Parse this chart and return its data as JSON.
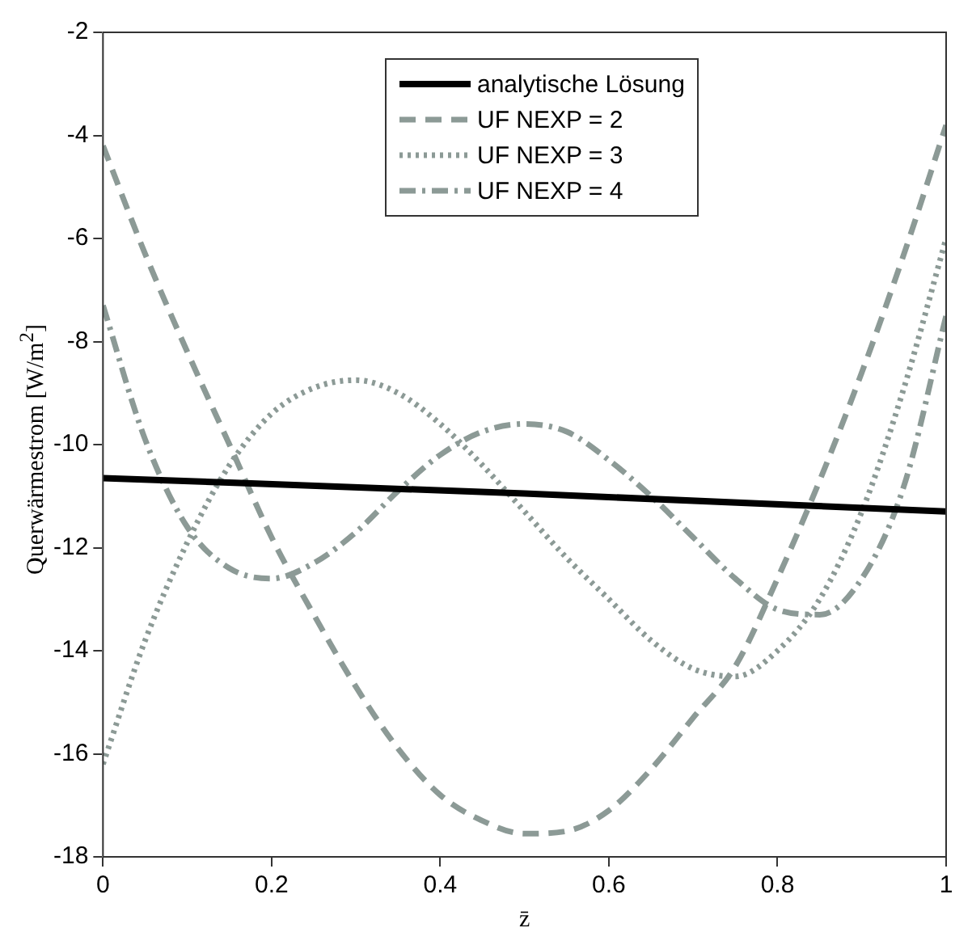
{
  "chart_data": {
    "type": "line",
    "xlabel": "z̄",
    "ylabel": "Querwärmestrom [W/m$^{2}$]",
    "x": [
      0,
      0.05,
      0.1,
      0.15,
      0.2,
      0.25,
      0.3,
      0.35,
      0.4,
      0.45,
      0.5,
      0.55,
      0.6,
      0.65,
      0.7,
      0.75,
      0.8,
      0.85,
      0.9,
      0.95,
      1.0
    ],
    "series": [
      {
        "name": "analytische Lösung",
        "color": "#000000",
        "line_style": "solid",
        "x": [
          0,
          0.5,
          1.0
        ],
        "values": [
          -10.65,
          -10.95,
          -11.3
        ]
      },
      {
        "name": "UF NEXP = 2",
        "color": "#8c9a96",
        "line_style": "dashed",
        "values": [
          -4.2,
          -6.3,
          -8.2,
          -10.0,
          -11.8,
          -13.3,
          -14.7,
          -15.9,
          -16.8,
          -17.3,
          -17.55,
          -17.5,
          -17.1,
          -16.3,
          -15.3,
          -14.3,
          -12.6,
          -10.7,
          -8.6,
          -6.3,
          -3.8
        ]
      },
      {
        "name": "UF NEXP = 3",
        "color": "#8c9a96",
        "line_style": "dotted",
        "values": [
          -16.2,
          -13.8,
          -11.9,
          -10.4,
          -9.4,
          -8.9,
          -8.75,
          -9.0,
          -9.6,
          -10.4,
          -11.3,
          -12.2,
          -13.0,
          -13.8,
          -14.35,
          -14.5,
          -14.0,
          -13.0,
          -11.3,
          -8.9,
          -6.0
        ]
      },
      {
        "name": "UF NEXP = 4",
        "color": "#8c9a96",
        "line_style": "dashdot",
        "values": [
          -7.3,
          -9.9,
          -11.6,
          -12.4,
          -12.6,
          -12.3,
          -11.7,
          -10.9,
          -10.2,
          -9.75,
          -9.6,
          -9.75,
          -10.3,
          -11.0,
          -11.8,
          -12.6,
          -13.2,
          -13.3,
          -12.6,
          -10.8,
          -7.5
        ]
      }
    ],
    "xlim": [
      0,
      1
    ],
    "xticks": [
      0,
      0.2,
      0.4,
      0.6,
      0.8,
      1
    ],
    "ylim": [
      -18,
      -2
    ],
    "yticks": [
      -18,
      -16,
      -14,
      -12,
      -10,
      -8,
      -6,
      -4,
      -2
    ],
    "grid": false,
    "legend": "top",
    "marker": "none"
  }
}
